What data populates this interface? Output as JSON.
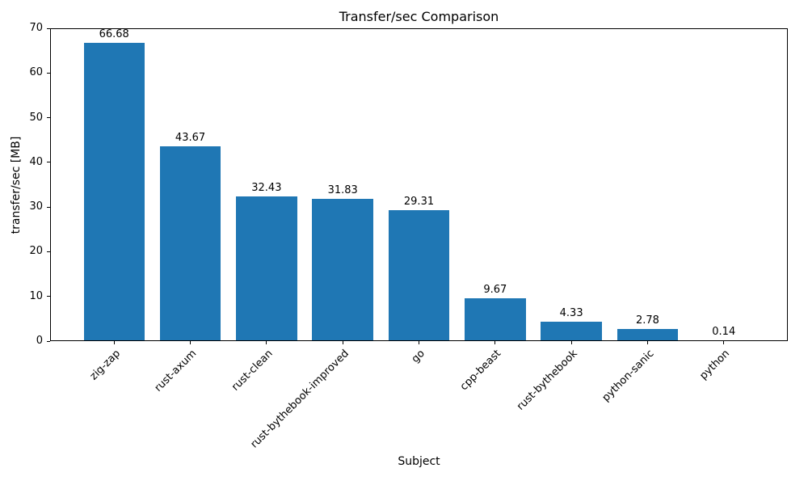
{
  "chart_data": {
    "type": "bar",
    "title": "Transfer/sec Comparison",
    "xlabel": "Subject",
    "ylabel": "transfer/sec [MB]",
    "categories": [
      "zig-zap",
      "rust-axum",
      "rust-clean",
      "rust-bythebook-improved",
      "go",
      "cpp-beast",
      "rust-bythebook",
      "python-sanic",
      "python"
    ],
    "values": [
      66.68,
      43.67,
      32.43,
      31.83,
      29.31,
      9.67,
      4.33,
      2.78,
      0.14
    ],
    "bar_labels": [
      "66.68",
      "43.67",
      "32.43",
      "31.83",
      "29.31",
      "9.67",
      "4.33",
      "2.78",
      "0.14"
    ],
    "ylim": [
      0,
      70
    ],
    "yticks": [
      0,
      10,
      20,
      30,
      40,
      50,
      60,
      70
    ],
    "bar_color": "#1f77b4",
    "grid": false,
    "legend_position": "none"
  }
}
